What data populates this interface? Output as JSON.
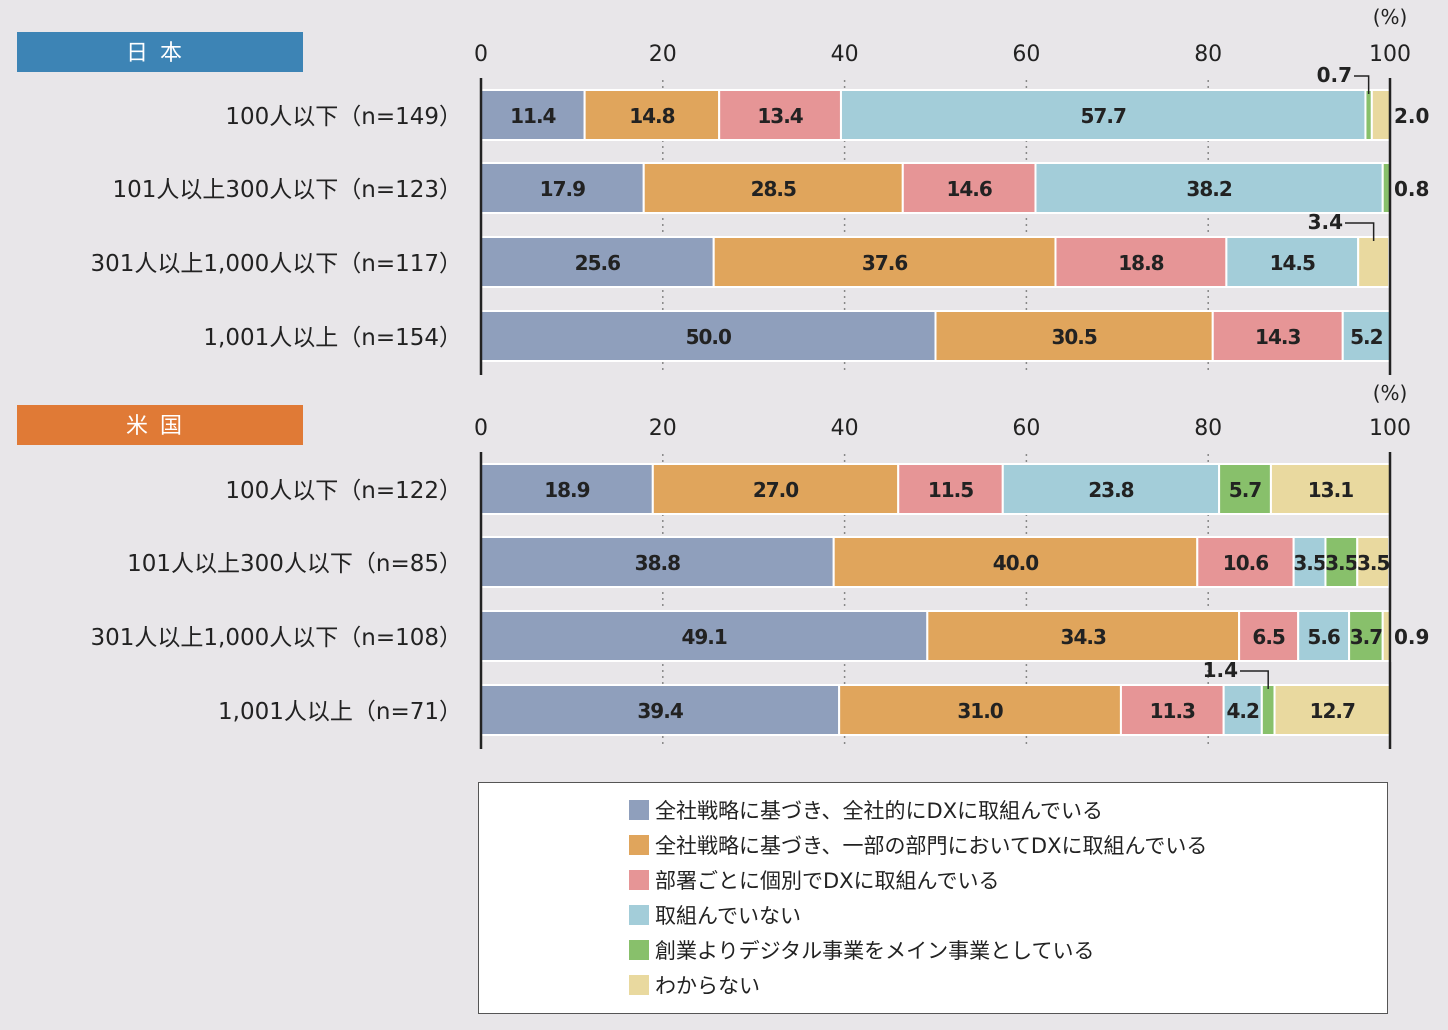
{
  "colors": {
    "segments": [
      "#8f9fbc",
      "#e0a55c",
      "#e69596",
      "#a3cdd9",
      "#88c06b",
      "#e9d99f"
    ],
    "panel_japan": "#3d84b5",
    "panel_us": "#e07a36",
    "axis": "#222222"
  },
  "legend": {
    "items": [
      "全社戦略に基づき、全社的にDXに取組んでいる",
      "全社戦略に基づき、一部の部門においてDXに取組んでいる",
      "部署ごとに個別でDXに取組んでいる",
      "取組んでいない",
      "創業よりデジタル事業をメイン事業としている",
      "わからない"
    ]
  },
  "chart_data": [
    {
      "type": "bar",
      "orientation": "horizontal",
      "stacked": true,
      "title": "日本",
      "unit": "(%)",
      "xlim": [
        0,
        100
      ],
      "xticks": [
        "0",
        "20",
        "40",
        "60",
        "80",
        "100"
      ],
      "grid": true,
      "categories": [
        "100人以下（n=149）",
        "101人以上300人以下（n=123）",
        "301人以上1,000人以下（n=117）",
        "1,001人以上（n=154）"
      ],
      "series": [
        {
          "name": "全社戦略に基づき、全社的にDXに取組んでいる",
          "values": [
            11.4,
            17.9,
            25.6,
            50.0
          ]
        },
        {
          "name": "全社戦略に基づき、一部の部門においてDXに取組んでいる",
          "values": [
            14.8,
            28.5,
            37.6,
            30.5
          ]
        },
        {
          "name": "部署ごとに個別でDXに取組んでいる",
          "values": [
            13.4,
            14.6,
            18.8,
            14.3
          ]
        },
        {
          "name": "取組んでいない",
          "values": [
            57.7,
            38.2,
            14.5,
            5.2
          ]
        },
        {
          "name": "創業よりデジタル事業をメイン事業としている",
          "values": [
            0.7,
            0.8,
            0.0,
            0.0
          ]
        },
        {
          "name": "わからない",
          "values": [
            2.0,
            0.0,
            3.4,
            0.0
          ]
        }
      ],
      "labels": [
        [
          "11.4",
          "14.8",
          "13.4",
          "57.7",
          "0.7",
          "2.0"
        ],
        [
          "17.9",
          "28.5",
          "14.6",
          "38.2",
          "0.8",
          ""
        ],
        [
          "25.6",
          "37.6",
          "18.8",
          "14.5",
          "",
          "3.4"
        ],
        [
          "50.0",
          "30.5",
          "14.3",
          "5.2",
          "",
          ""
        ]
      ]
    },
    {
      "type": "bar",
      "orientation": "horizontal",
      "stacked": true,
      "title": "米国",
      "unit": "(%)",
      "xlim": [
        0,
        100
      ],
      "xticks": [
        "0",
        "20",
        "40",
        "60",
        "80",
        "100"
      ],
      "grid": true,
      "categories": [
        "100人以下（n=122）",
        "101人以上300人以下（n=85）",
        "301人以上1,000人以下（n=108）",
        "1,001人以上（n=71）"
      ],
      "series": [
        {
          "name": "全社戦略に基づき、全社的にDXに取組んでいる",
          "values": [
            18.9,
            38.8,
            49.1,
            39.4
          ]
        },
        {
          "name": "全社戦略に基づき、一部の部門においてDXに取組んでいる",
          "values": [
            27.0,
            40.0,
            34.3,
            31.0
          ]
        },
        {
          "name": "部署ごとに個別でDXに取組んでいる",
          "values": [
            11.5,
            10.6,
            6.5,
            11.3
          ]
        },
        {
          "name": "取組んでいない",
          "values": [
            23.8,
            3.5,
            5.6,
            4.2
          ]
        },
        {
          "name": "創業よりデジタル事業をメイン事業としている",
          "values": [
            5.7,
            3.5,
            3.7,
            1.4
          ]
        },
        {
          "name": "わからない",
          "values": [
            13.1,
            3.5,
            0.9,
            12.7
          ]
        }
      ],
      "labels": [
        [
          "18.9",
          "27.0",
          "11.5",
          "23.8",
          "5.7",
          "13.1"
        ],
        [
          "38.8",
          "40.0",
          "10.6",
          "3.5",
          "3.5",
          "3.5"
        ],
        [
          "49.1",
          "34.3",
          "6.5",
          "5.6",
          "3.7",
          "0.9"
        ],
        [
          "39.4",
          "31.0",
          "11.3",
          "4.2",
          "1.4",
          "12.7"
        ]
      ]
    }
  ]
}
